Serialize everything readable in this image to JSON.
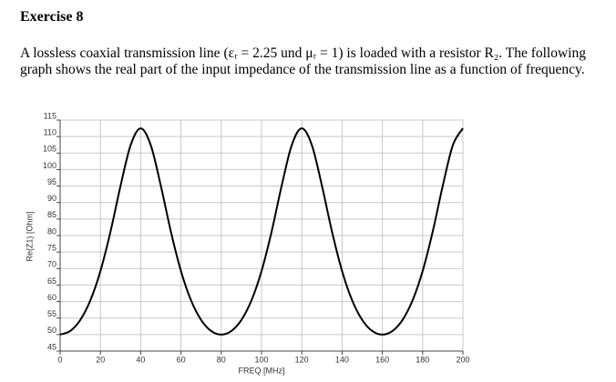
{
  "header": {
    "title": "Exercise 8"
  },
  "paragraph": "A lossless coaxial transmission line (εᵣ = 2.25 und μᵣ = 1) is loaded with a resistor R₂. The following graph shows the real part of the input impedance of the transmission line as a function of frequency.",
  "chart_data": {
    "type": "line",
    "x_label": "FREQ [MHz]",
    "y_label": "Re(Z1) [Ohm]",
    "x": [
      0,
      5,
      10,
      15,
      20,
      25,
      30,
      35,
      40,
      45,
      50,
      55,
      60,
      65,
      70,
      75,
      80,
      85,
      90,
      95,
      100,
      105,
      110,
      115,
      120,
      125,
      130,
      135,
      140,
      145,
      150,
      155,
      160,
      165,
      170,
      175,
      180,
      185,
      190,
      195,
      200
    ],
    "series": [
      {
        "color": "#000000",
        "values": [
          50,
          51.08,
          54.43,
          60.35,
          69.23,
          81.18,
          95.09,
          107.39,
          112.5,
          107.39,
          95.09,
          81.18,
          69.23,
          60.35,
          54.43,
          51.08,
          50,
          51.08,
          54.43,
          60.35,
          69.23,
          81.18,
          95.09,
          107.39,
          112.5,
          107.39,
          95.09,
          81.18,
          69.23,
          60.35,
          54.43,
          51.08,
          50,
          51.08,
          54.43,
          60.35,
          69.23,
          81.18,
          95.09,
          107.39,
          112.5
        ]
      }
    ],
    "xlim": [
      0,
      200
    ],
    "xticks": [
      0,
      20,
      40,
      60,
      80,
      100,
      120,
      140,
      160,
      180,
      200
    ],
    "ylim": [
      45,
      115
    ],
    "yticks": [
      45,
      50,
      55,
      60,
      65,
      70,
      75,
      80,
      85,
      90,
      95,
      100,
      105,
      110,
      115
    ],
    "grid": true
  }
}
